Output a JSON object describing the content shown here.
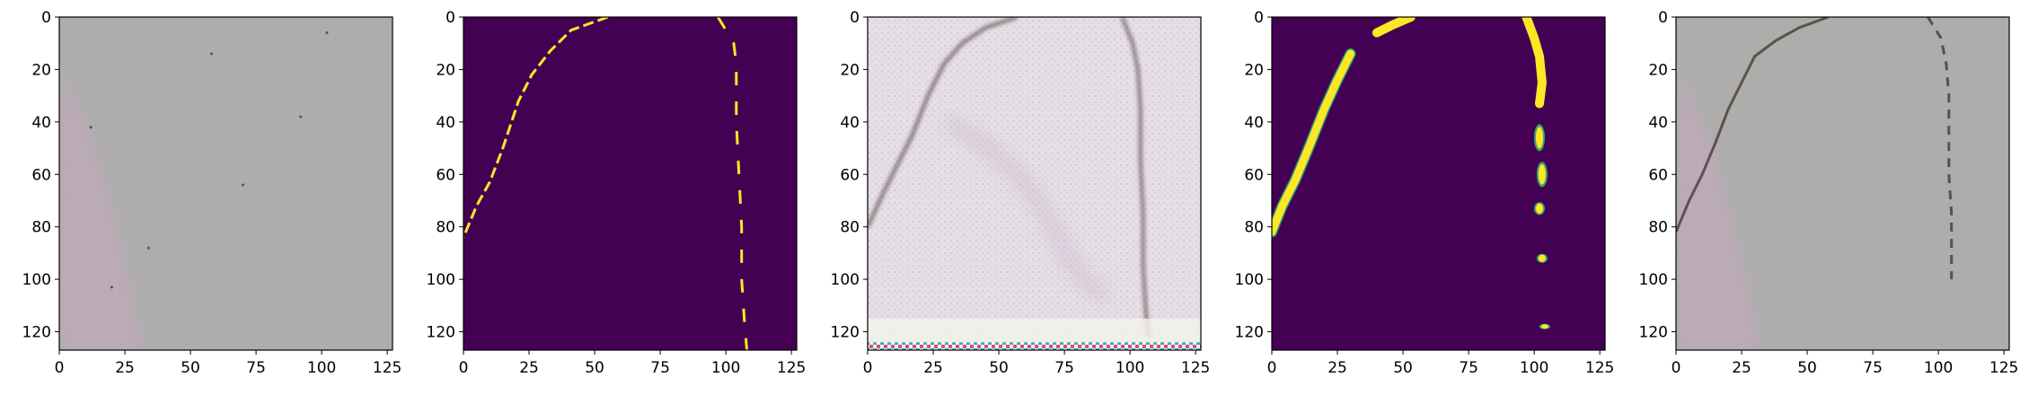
{
  "chart_data": [
    {
      "type": "heatmap",
      "panel": "input-photo",
      "render": "photo",
      "xlim": [
        0,
        127
      ],
      "ylim": [
        127,
        0
      ],
      "xticks": [
        "0",
        "25",
        "50",
        "75",
        "100",
        "125"
      ],
      "yticks": [
        "0",
        "20",
        "40",
        "60",
        "80",
        "100",
        "120"
      ],
      "title": "",
      "xlabel": "",
      "ylabel": ""
    },
    {
      "type": "heatmap",
      "panel": "ground-truth-mask",
      "render": "mask",
      "colormap": "viridis",
      "background_color": "#440154",
      "mark_color": "#fde725",
      "xlim": [
        0,
        127
      ],
      "ylim": [
        127,
        0
      ],
      "xticks": [
        "0",
        "25",
        "50",
        "75",
        "100",
        "125"
      ],
      "yticks": [
        "0",
        "20",
        "40",
        "60",
        "80",
        "100",
        "120"
      ],
      "crack_left_curve": [
        [
          55,
          0
        ],
        [
          41,
          5
        ],
        [
          33,
          13
        ],
        [
          26,
          22
        ],
        [
          21,
          32
        ],
        [
          15,
          50
        ],
        [
          10,
          63
        ],
        [
          5,
          72
        ],
        [
          0,
          84
        ]
      ],
      "crack_right_curve": [
        [
          97,
          0
        ],
        [
          103,
          10
        ],
        [
          104,
          18
        ],
        [
          104,
          25
        ],
        [
          104,
          40
        ],
        [
          105,
          60
        ],
        [
          106,
          80
        ],
        [
          106,
          100
        ],
        [
          107,
          115
        ],
        [
          108,
          127
        ]
      ],
      "title": "",
      "xlabel": "",
      "ylabel": ""
    },
    {
      "type": "heatmap",
      "panel": "reconstruction",
      "render": "recon",
      "xlim": [
        0,
        127
      ],
      "ylim": [
        127,
        0
      ],
      "xticks": [
        "0",
        "25",
        "50",
        "75",
        "100",
        "125"
      ],
      "yticks": [
        "0",
        "20",
        "40",
        "60",
        "80",
        "100",
        "120"
      ],
      "title": "",
      "xlabel": "",
      "ylabel": ""
    },
    {
      "type": "heatmap",
      "panel": "predicted-mask",
      "render": "pred",
      "colormap": "viridis",
      "background_color": "#440154",
      "mark_color": "#fde725",
      "xlim": [
        0,
        127
      ],
      "ylim": [
        127,
        0
      ],
      "xticks": [
        "0",
        "25",
        "50",
        "75",
        "100",
        "125"
      ],
      "yticks": [
        "0",
        "20",
        "40",
        "60",
        "80",
        "100",
        "120"
      ],
      "crack_left_curve": [
        [
          30,
          14
        ],
        [
          25,
          24
        ],
        [
          20,
          35
        ],
        [
          14,
          50
        ],
        [
          9,
          62
        ],
        [
          4,
          72
        ],
        [
          0,
          82
        ]
      ],
      "crack_top_blob": [
        [
          40,
          6
        ],
        [
          46,
          3
        ],
        [
          53,
          0
        ]
      ],
      "crack_right_curve": [
        [
          97,
          0
        ],
        [
          100,
          8
        ],
        [
          102,
          15
        ],
        [
          103,
          25
        ],
        [
          102,
          33
        ]
      ],
      "title": "",
      "xlabel": "",
      "ylabel": ""
    },
    {
      "type": "heatmap",
      "panel": "overlay-photo",
      "render": "photo-crack",
      "xlim": [
        0,
        127
      ],
      "ylim": [
        127,
        0
      ],
      "xticks": [
        "0",
        "25",
        "50",
        "75",
        "100",
        "125"
      ],
      "yticks": [
        "0",
        "20",
        "40",
        "60",
        "80",
        "100",
        "120"
      ],
      "title": "",
      "xlabel": "",
      "ylabel": ""
    }
  ]
}
